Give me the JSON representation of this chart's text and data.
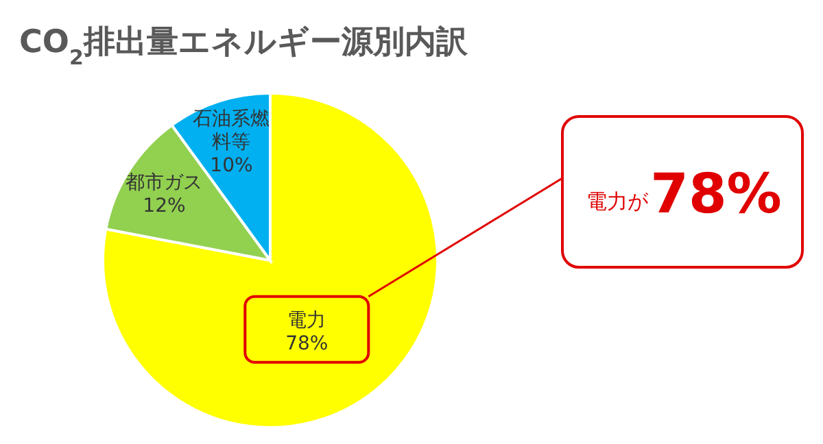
{
  "chart_data": {
    "type": "pie",
    "title": "CO$_{2}$排出量エネルギー源別内訳",
    "categories": [
      "電力",
      "都市ガス",
      "石油系燃料等"
    ],
    "values": [
      78,
      12,
      10
    ],
    "value_labels": [
      "78%",
      "12%",
      "10%"
    ],
    "colors": [
      "#ffff00",
      "#92d050",
      "#00b0f0"
    ],
    "annotations": [
      "電力が",
      "78%"
    ]
  }
}
